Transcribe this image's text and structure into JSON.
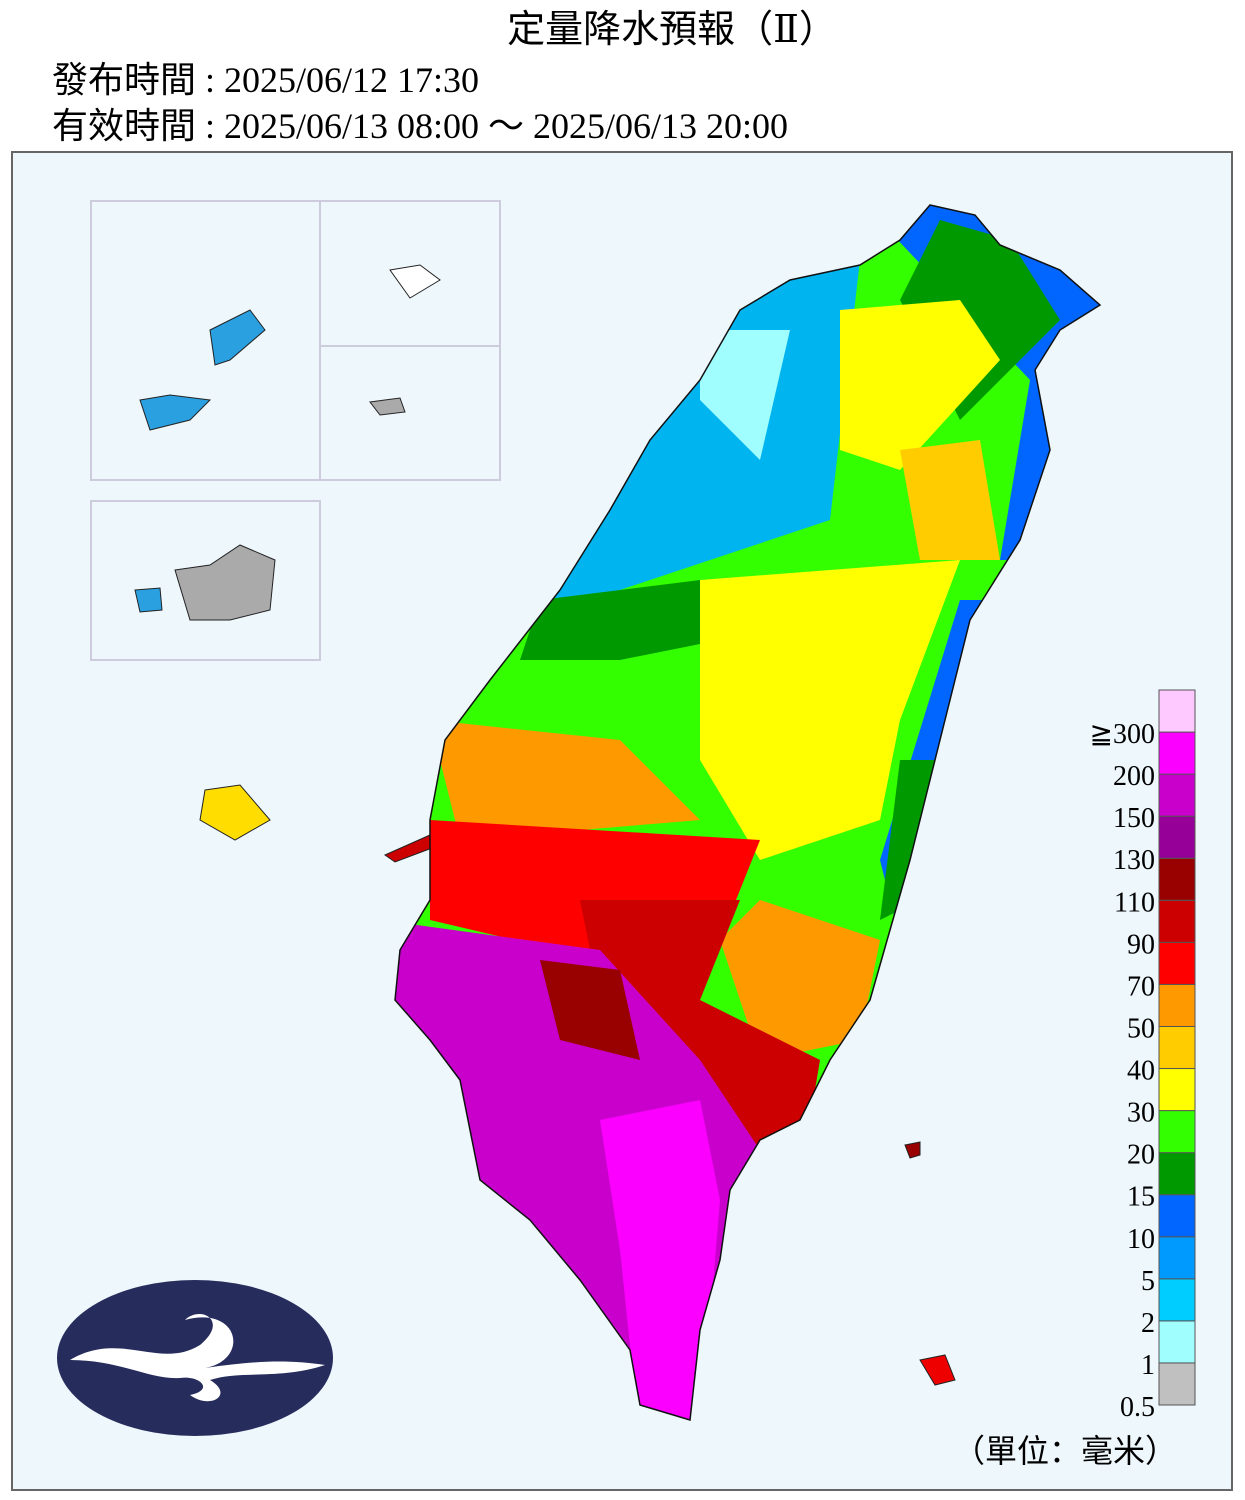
{
  "header": {
    "title": "定量降水預報（Ⅱ）",
    "issued": "發布時間 : 2025/06/12 17:30",
    "valid": "有效時間 : 2025/06/13 08:00 ～ 2025/06/13 20:00"
  },
  "legend": {
    "unit": "（單位：毫米）",
    "items": [
      {
        "label": "0.5",
        "color": "#c0c0c0"
      },
      {
        "label": "1",
        "color": "#a0fefe"
      },
      {
        "label": "2",
        "color": "#00cdff"
      },
      {
        "label": "5",
        "color": "#009aff"
      },
      {
        "label": "10",
        "color": "#0066ff"
      },
      {
        "label": "15",
        "color": "#009a00"
      },
      {
        "label": "20",
        "color": "#33ff00"
      },
      {
        "label": "30",
        "color": "#ffff00"
      },
      {
        "label": "40",
        "color": "#ffcc00"
      },
      {
        "label": "50",
        "color": "#ff9900"
      },
      {
        "label": "70",
        "color": "#ff0000"
      },
      {
        "label": "90",
        "color": "#cc0000"
      },
      {
        "label": "110",
        "color": "#990000"
      },
      {
        "label": "130",
        "color": "#960099"
      },
      {
        "label": "150",
        "color": "#c900cc"
      },
      {
        "label": "200",
        "color": "#fb00ff"
      },
      {
        "label": "≧300",
        "color": "#fdc9ff"
      }
    ]
  }
}
